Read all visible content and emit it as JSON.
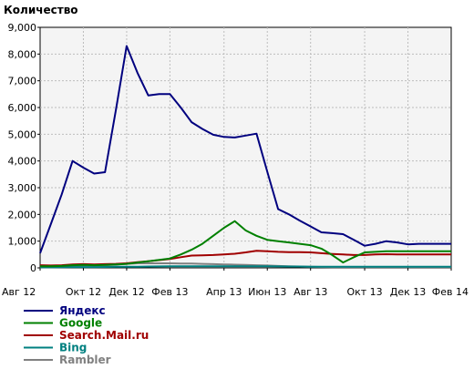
{
  "chart_data": {
    "type": "line",
    "title": "Количество",
    "xlabel": "",
    "ylabel": "",
    "ylim": [
      0,
      9000
    ],
    "grid": true,
    "legend_position": "bottom-left",
    "y_ticks": [
      0,
      1000,
      2000,
      3000,
      4000,
      5000,
      6000,
      7000,
      8000,
      9000
    ],
    "y_tick_labels": [
      "0",
      "1,000",
      "2,000",
      "3,000",
      "4,000",
      "5,000",
      "6,000",
      "7,000",
      "8,000",
      "9,000"
    ],
    "x_tick_labels": [
      {
        "label": "Авг 12",
        "index": 0
      },
      {
        "label": "Окт 12",
        "index": 4
      },
      {
        "label": "Дек 12",
        "index": 8
      },
      {
        "label": "Фев 13",
        "index": 12
      },
      {
        "label": "Апр 13",
        "index": 17
      },
      {
        "label": "Июн 13",
        "index": 21
      },
      {
        "label": "Авг 13",
        "index": 25
      },
      {
        "label": "Окт 13",
        "index": 30
      },
      {
        "label": "Дек 13",
        "index": 34
      },
      {
        "label": "Фев 14",
        "index": 38
      }
    ],
    "series": [
      {
        "name": "Яндекс",
        "color": "#00007f",
        "values": [
          550,
          1650,
          2750,
          4000,
          3750,
          3530,
          3580,
          5900,
          8300,
          7300,
          6450,
          6500,
          6500,
          6000,
          5450,
          5200,
          4980,
          4900,
          4880,
          4950,
          5020,
          3600,
          2200,
          2000,
          1770,
          1550,
          1330,
          1300,
          1260,
          1050,
          830,
          900,
          1000,
          950,
          880,
          900,
          900,
          900,
          900
        ]
      },
      {
        "name": "Google",
        "color": "#008000",
        "values": [
          60,
          60,
          70,
          100,
          110,
          100,
          110,
          130,
          150,
          200,
          250,
          300,
          350,
          500,
          680,
          900,
          1200,
          1500,
          1750,
          1400,
          1200,
          1050,
          1000,
          950,
          900,
          850,
          720,
          480,
          200,
          400,
          580,
          600,
          620,
          620,
          620,
          620,
          620,
          620,
          620
        ]
      },
      {
        "name": "Search.Mail.ru",
        "color": "#a00000",
        "values": [
          100,
          90,
          100,
          130,
          140,
          130,
          140,
          150,
          170,
          210,
          250,
          290,
          330,
          400,
          460,
          470,
          480,
          500,
          530,
          580,
          640,
          620,
          600,
          590,
          590,
          580,
          550,
          520,
          500,
          480,
          480,
          500,
          510,
          500,
          500,
          500,
          500,
          500,
          500
        ]
      },
      {
        "name": "Bing",
        "color": "#008080",
        "values": [
          20,
          20,
          25,
          30,
          30,
          30,
          35,
          40,
          40,
          45,
          50,
          55,
          60,
          60,
          60,
          60,
          60,
          60,
          60,
          60,
          60,
          60,
          55,
          50,
          50,
          45,
          45,
          40,
          40,
          40,
          40,
          40,
          40,
          40,
          40,
          40,
          40,
          40,
          40
        ]
      },
      {
        "name": "Rambler",
        "color": "#808080",
        "values": [
          50,
          50,
          60,
          80,
          90,
          90,
          100,
          120,
          150,
          170,
          170,
          170,
          170,
          160,
          160,
          150,
          140,
          130,
          120,
          110,
          100,
          90,
          70,
          60,
          50,
          40,
          35,
          30,
          30,
          30,
          30,
          30,
          30,
          30,
          30,
          30,
          30,
          30,
          30
        ]
      }
    ]
  }
}
